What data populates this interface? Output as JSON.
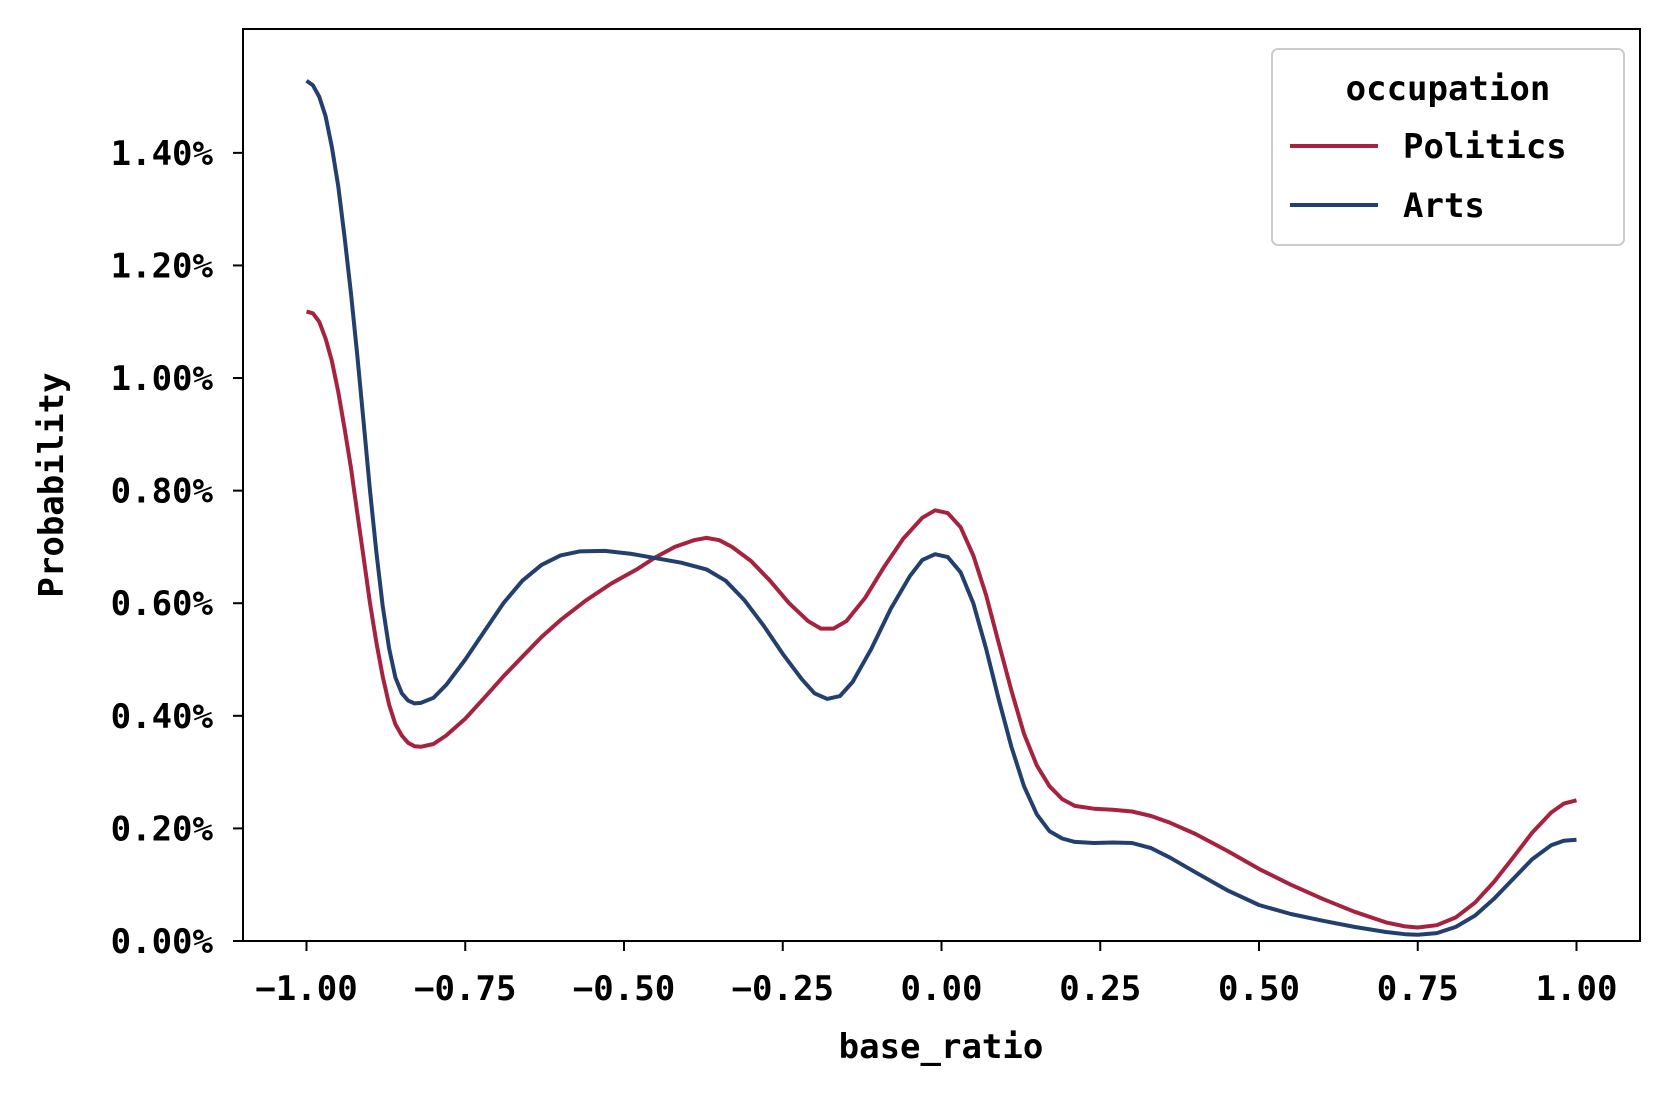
{
  "chart_data": {
    "type": "line",
    "xlabel": "base_ratio",
    "ylabel": "Probability",
    "xlim": [
      -1.1,
      1.1
    ],
    "ylim": [
      0,
      0.0162
    ],
    "x_ticks": [
      -1.0,
      -0.75,
      -0.5,
      -0.25,
      0.0,
      0.25,
      0.5,
      0.75,
      1.0
    ],
    "x_tick_labels": [
      "−1.00",
      "−0.75",
      "−0.50",
      "−0.25",
      "0.00",
      "0.25",
      "0.50",
      "0.75",
      "1.00"
    ],
    "y_ticks": [
      0.0,
      0.002,
      0.004,
      0.006,
      0.008,
      0.01,
      0.012,
      0.014
    ],
    "y_tick_labels": [
      "0.00%",
      "0.20%",
      "0.40%",
      "0.60%",
      "0.80%",
      "1.00%",
      "1.20%",
      "1.40%"
    ],
    "grid": false,
    "legend": {
      "title": "occupation",
      "placement": "top-right"
    },
    "series": [
      {
        "name": "Politics",
        "color": "#a6223f",
        "points": [
          [
            -1.0,
            0.01118
          ],
          [
            -0.99,
            0.01115
          ],
          [
            -0.98,
            0.011
          ],
          [
            -0.97,
            0.0107
          ],
          [
            -0.96,
            0.0103
          ],
          [
            -0.95,
            0.00975
          ],
          [
            -0.94,
            0.0091
          ],
          [
            -0.93,
            0.0084
          ],
          [
            -0.92,
            0.0076
          ],
          [
            -0.91,
            0.0068
          ],
          [
            -0.9,
            0.006
          ],
          [
            -0.89,
            0.0053
          ],
          [
            -0.88,
            0.0047
          ],
          [
            -0.87,
            0.0042
          ],
          [
            -0.86,
            0.00385
          ],
          [
            -0.85,
            0.00365
          ],
          [
            -0.84,
            0.00352
          ],
          [
            -0.83,
            0.00346
          ],
          [
            -0.82,
            0.00345
          ],
          [
            -0.8,
            0.0035
          ],
          [
            -0.78,
            0.00365
          ],
          [
            -0.75,
            0.00395
          ],
          [
            -0.72,
            0.00432
          ],
          [
            -0.69,
            0.0047
          ],
          [
            -0.66,
            0.00505
          ],
          [
            -0.63,
            0.0054
          ],
          [
            -0.6,
            0.0057
          ],
          [
            -0.56,
            0.00605
          ],
          [
            -0.52,
            0.00635
          ],
          [
            -0.48,
            0.0066
          ],
          [
            -0.45,
            0.00682
          ],
          [
            -0.42,
            0.007
          ],
          [
            -0.39,
            0.00712
          ],
          [
            -0.37,
            0.00716
          ],
          [
            -0.35,
            0.00712
          ],
          [
            -0.33,
            0.007
          ],
          [
            -0.3,
            0.00675
          ],
          [
            -0.27,
            0.0064
          ],
          [
            -0.24,
            0.006
          ],
          [
            -0.21,
            0.00568
          ],
          [
            -0.19,
            0.00555
          ],
          [
            -0.17,
            0.00555
          ],
          [
            -0.15,
            0.00568
          ],
          [
            -0.12,
            0.0061
          ],
          [
            -0.09,
            0.00665
          ],
          [
            -0.06,
            0.00715
          ],
          [
            -0.03,
            0.00752
          ],
          [
            -0.01,
            0.00765
          ],
          [
            0.01,
            0.0076
          ],
          [
            0.03,
            0.00735
          ],
          [
            0.05,
            0.00685
          ],
          [
            0.07,
            0.00615
          ],
          [
            0.09,
            0.0053
          ],
          [
            0.11,
            0.00445
          ],
          [
            0.13,
            0.00368
          ],
          [
            0.15,
            0.00312
          ],
          [
            0.17,
            0.00275
          ],
          [
            0.19,
            0.00252
          ],
          [
            0.21,
            0.0024
          ],
          [
            0.24,
            0.00235
          ],
          [
            0.27,
            0.00233
          ],
          [
            0.3,
            0.0023
          ],
          [
            0.33,
            0.00222
          ],
          [
            0.36,
            0.0021
          ],
          [
            0.4,
            0.0019
          ],
          [
            0.45,
            0.0016
          ],
          [
            0.5,
            0.00128
          ],
          [
            0.55,
            0.001
          ],
          [
            0.6,
            0.00075
          ],
          [
            0.65,
            0.00052
          ],
          [
            0.7,
            0.00033
          ],
          [
            0.73,
            0.00026
          ],
          [
            0.75,
            0.00024
          ],
          [
            0.78,
            0.00028
          ],
          [
            0.81,
            0.00042
          ],
          [
            0.84,
            0.00068
          ],
          [
            0.87,
            0.00105
          ],
          [
            0.9,
            0.00148
          ],
          [
            0.93,
            0.00192
          ],
          [
            0.96,
            0.00228
          ],
          [
            0.98,
            0.00244
          ],
          [
            1.0,
            0.0025
          ]
        ]
      },
      {
        "name": "Arts",
        "color": "#223f6e",
        "points": [
          [
            -1.0,
            0.01528
          ],
          [
            -0.99,
            0.0152
          ],
          [
            -0.98,
            0.015
          ],
          [
            -0.97,
            0.01465
          ],
          [
            -0.96,
            0.0141
          ],
          [
            -0.95,
            0.0134
          ],
          [
            -0.94,
            0.0125
          ],
          [
            -0.93,
            0.0115
          ],
          [
            -0.92,
            0.0104
          ],
          [
            -0.91,
            0.0092
          ],
          [
            -0.9,
            0.008
          ],
          [
            -0.89,
            0.0069
          ],
          [
            -0.88,
            0.00595
          ],
          [
            -0.87,
            0.0052
          ],
          [
            -0.86,
            0.00468
          ],
          [
            -0.85,
            0.0044
          ],
          [
            -0.84,
            0.00427
          ],
          [
            -0.83,
            0.00422
          ],
          [
            -0.82,
            0.00423
          ],
          [
            -0.8,
            0.00432
          ],
          [
            -0.78,
            0.00455
          ],
          [
            -0.75,
            0.005
          ],
          [
            -0.72,
            0.0055
          ],
          [
            -0.69,
            0.006
          ],
          [
            -0.66,
            0.0064
          ],
          [
            -0.63,
            0.00668
          ],
          [
            -0.6,
            0.00685
          ],
          [
            -0.57,
            0.00692
          ],
          [
            -0.53,
            0.00693
          ],
          [
            -0.49,
            0.00688
          ],
          [
            -0.45,
            0.0068
          ],
          [
            -0.41,
            0.00672
          ],
          [
            -0.37,
            0.0066
          ],
          [
            -0.34,
            0.0064
          ],
          [
            -0.31,
            0.00605
          ],
          [
            -0.28,
            0.0056
          ],
          [
            -0.25,
            0.0051
          ],
          [
            -0.22,
            0.00465
          ],
          [
            -0.2,
            0.0044
          ],
          [
            -0.18,
            0.0043
          ],
          [
            -0.16,
            0.00435
          ],
          [
            -0.14,
            0.0046
          ],
          [
            -0.11,
            0.0052
          ],
          [
            -0.08,
            0.0059
          ],
          [
            -0.05,
            0.00648
          ],
          [
            -0.03,
            0.00677
          ],
          [
            -0.01,
            0.00687
          ],
          [
            0.01,
            0.00682
          ],
          [
            0.03,
            0.00655
          ],
          [
            0.05,
            0.006
          ],
          [
            0.07,
            0.0052
          ],
          [
            0.09,
            0.0043
          ],
          [
            0.11,
            0.00345
          ],
          [
            0.13,
            0.00275
          ],
          [
            0.15,
            0.00225
          ],
          [
            0.17,
            0.00195
          ],
          [
            0.19,
            0.00182
          ],
          [
            0.21,
            0.00176
          ],
          [
            0.24,
            0.00174
          ],
          [
            0.27,
            0.00175
          ],
          [
            0.3,
            0.00174
          ],
          [
            0.33,
            0.00165
          ],
          [
            0.36,
            0.00148
          ],
          [
            0.4,
            0.00122
          ],
          [
            0.45,
            0.0009
          ],
          [
            0.5,
            0.00064
          ],
          [
            0.55,
            0.00048
          ],
          [
            0.6,
            0.00036
          ],
          [
            0.65,
            0.00025
          ],
          [
            0.7,
            0.00016
          ],
          [
            0.73,
            0.00012
          ],
          [
            0.75,
            0.00011
          ],
          [
            0.78,
            0.00014
          ],
          [
            0.81,
            0.00025
          ],
          [
            0.84,
            0.00045
          ],
          [
            0.87,
            0.00075
          ],
          [
            0.9,
            0.0011
          ],
          [
            0.93,
            0.00145
          ],
          [
            0.96,
            0.0017
          ],
          [
            0.98,
            0.00178
          ],
          [
            1.0,
            0.0018
          ]
        ]
      }
    ]
  }
}
